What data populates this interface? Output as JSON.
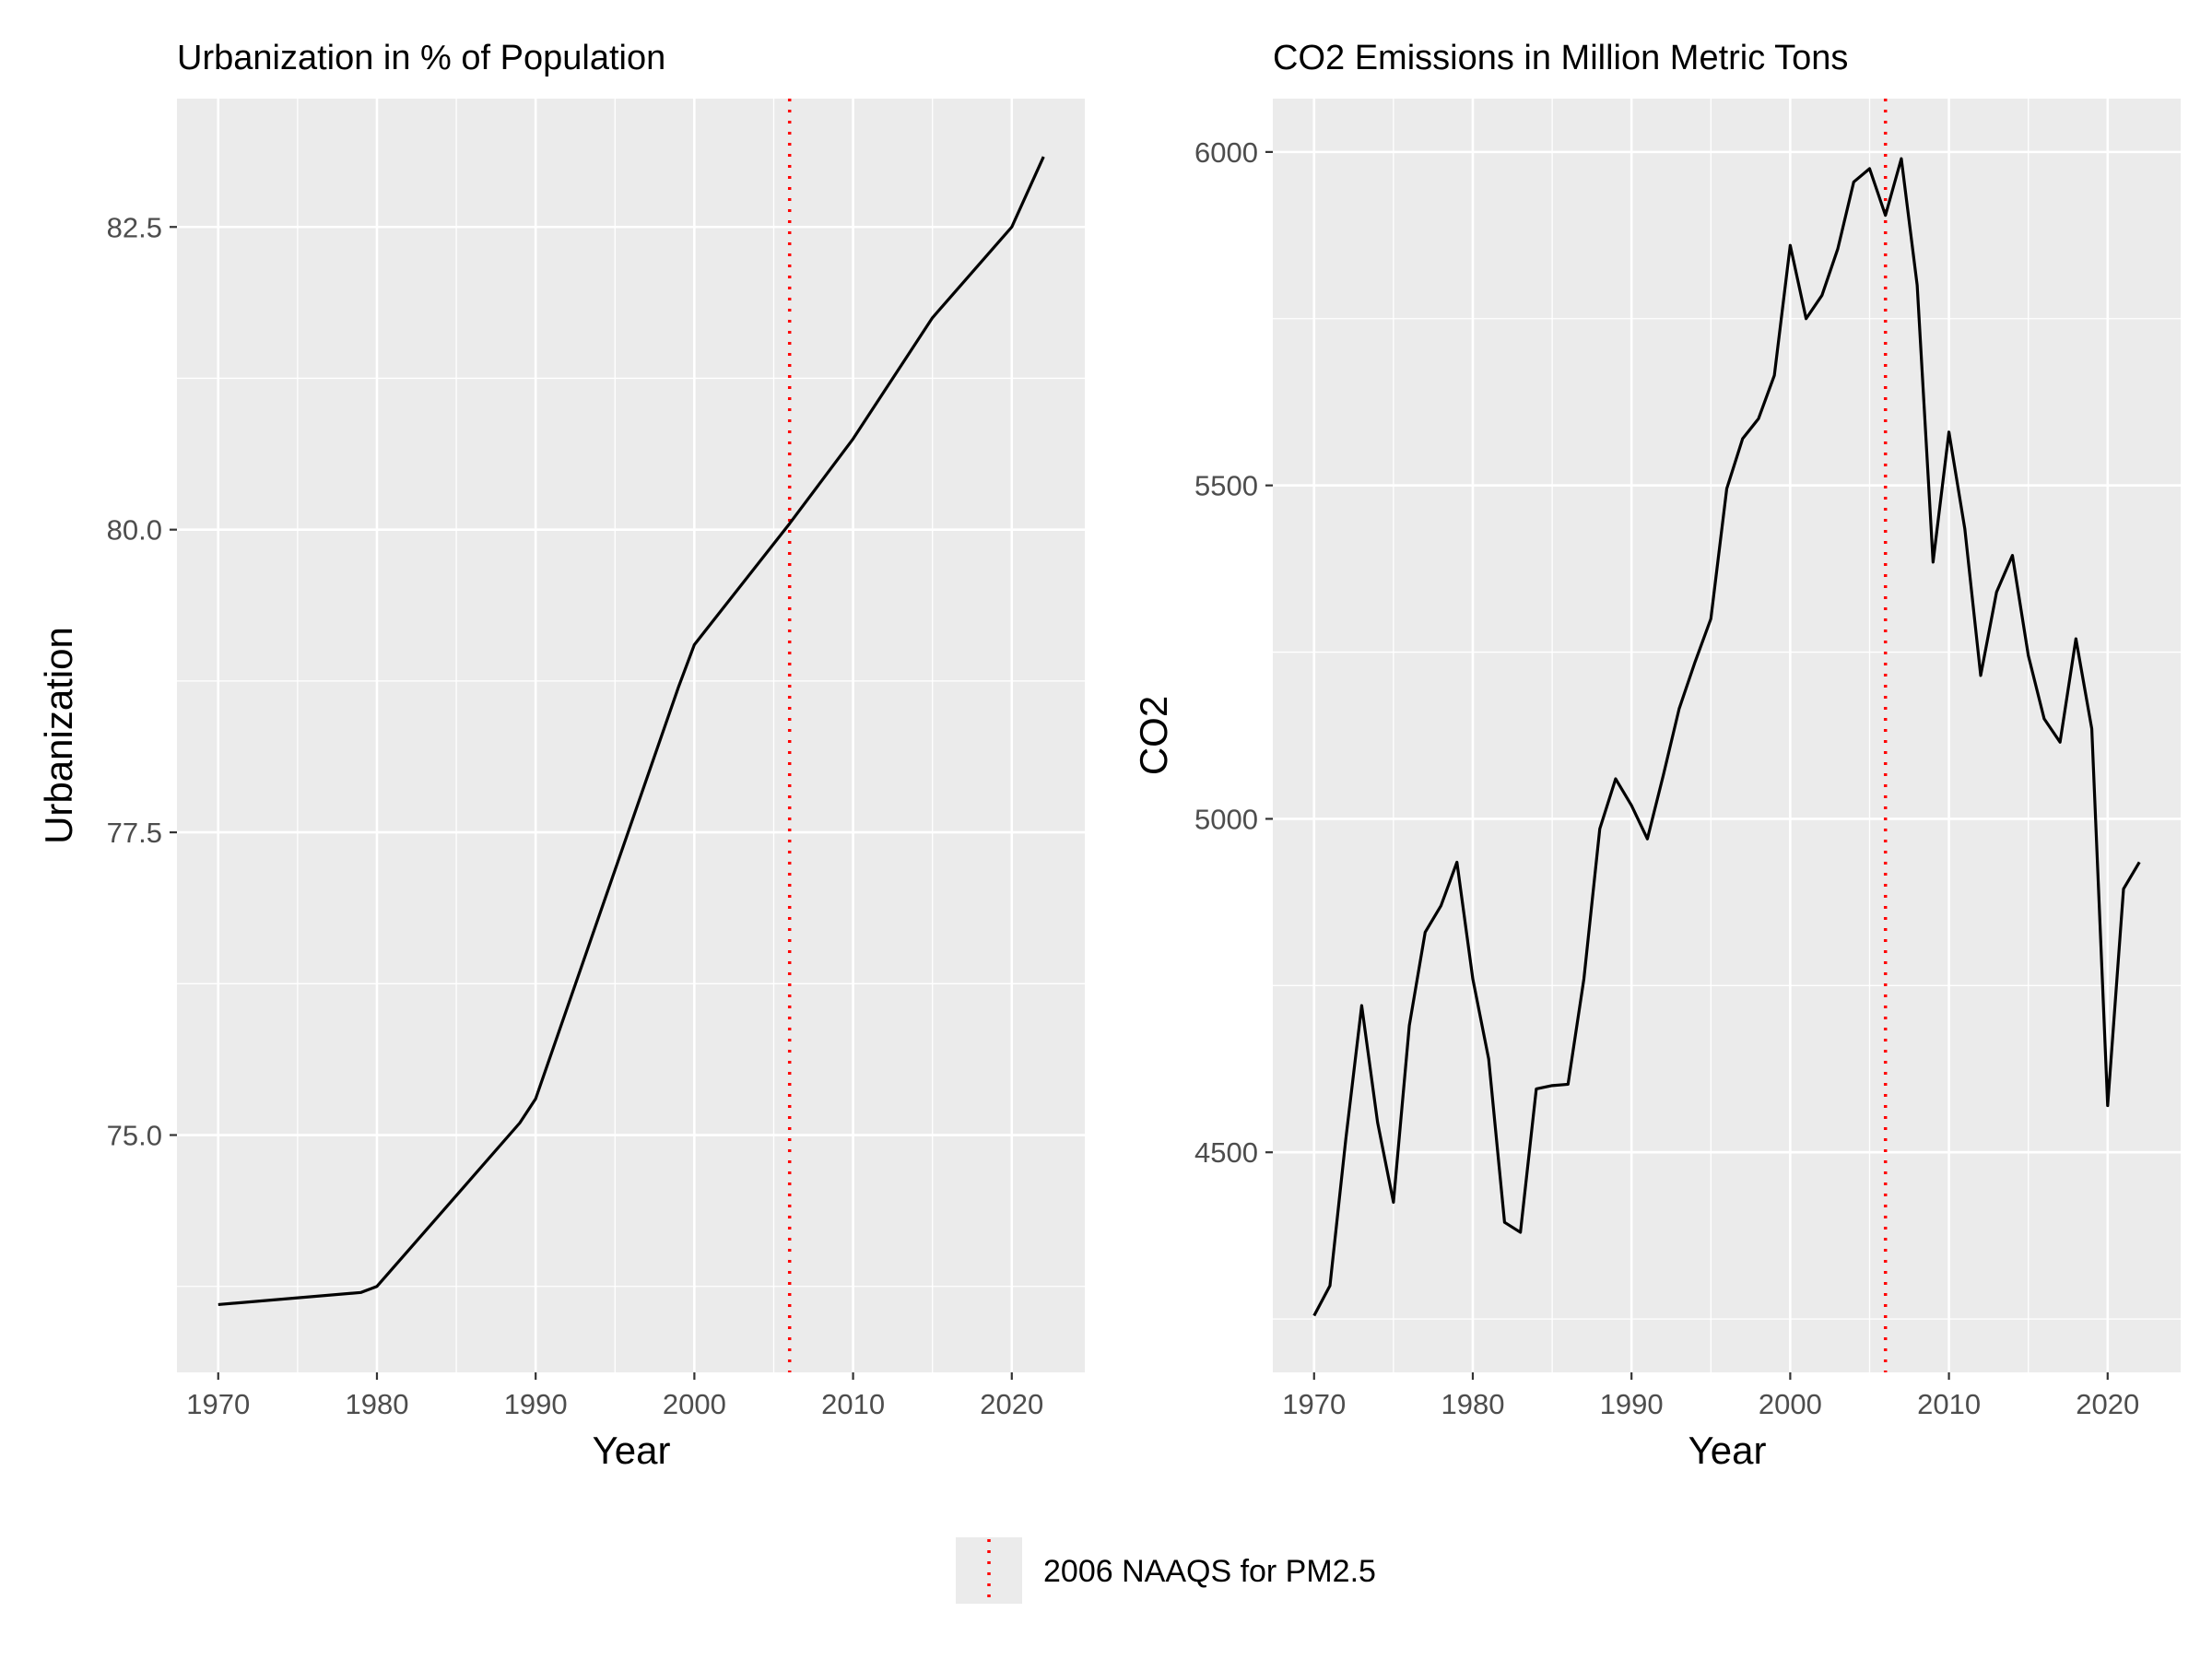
{
  "legend": {
    "label": "2006 NAAQS for PM2.5",
    "line_color": "#ff0000",
    "line_style": "dotted",
    "position": "bottom"
  },
  "style": {
    "panel_background": "#ebebeb",
    "grid_color": "#ffffff",
    "line_color": "#000000",
    "tick_label_color": "#4d4d4d"
  },
  "chart_data": [
    {
      "type": "line",
      "title": "Urbanization in % of Population",
      "xlabel": "Year",
      "ylabel": "Urbanization",
      "xlim": [
        1967.4,
        2024.6
      ],
      "ylim": [
        73.04,
        83.56
      ],
      "x_ticks": [
        1970,
        1980,
        1990,
        2000,
        2010,
        2020
      ],
      "y_ticks": [
        75.0,
        77.5,
        80.0,
        82.5
      ],
      "y_tick_labels": [
        "75.0",
        "77.5",
        "80.0",
        "82.5"
      ],
      "reference_line_x": 2006,
      "grid": true,
      "x": [
        1970,
        1979,
        1980,
        1989,
        1990,
        1999,
        2000,
        2006,
        2010,
        2015,
        2020,
        2022
      ],
      "values": [
        73.6,
        73.7,
        73.75,
        75.1,
        75.3,
        78.7,
        79.05,
        80.05,
        80.75,
        81.75,
        82.5,
        83.08
      ]
    },
    {
      "type": "line",
      "title": "CO2 Emissions in Million Metric Tons",
      "xlabel": "Year",
      "ylabel": "CO2",
      "xlim": [
        1967.4,
        2024.6
      ],
      "ylim": [
        4170,
        6080
      ],
      "x_ticks": [
        1970,
        1980,
        1990,
        2000,
        2010,
        2020
      ],
      "y_ticks": [
        4500,
        5000,
        5500,
        6000
      ],
      "y_tick_labels": [
        "4500",
        "5000",
        "5500",
        "6000"
      ],
      "reference_line_x": 2006,
      "grid": true,
      "x": [
        1970,
        1971,
        1972,
        1973,
        1974,
        1975,
        1976,
        1977,
        1978,
        1979,
        1980,
        1981,
        1982,
        1983,
        1984,
        1985,
        1986,
        1987,
        1988,
        1989,
        1990,
        1991,
        1992,
        1993,
        1994,
        1995,
        1996,
        1997,
        1998,
        1999,
        2000,
        2001,
        2002,
        2003,
        2004,
        2005,
        2006,
        2007,
        2008,
        2009,
        2010,
        2011,
        2012,
        2013,
        2014,
        2015,
        2016,
        2017,
        2018,
        2019,
        2020,
        2021,
        2022
      ],
      "values": [
        4255,
        4300,
        4520,
        4720,
        4545,
        4425,
        4690,
        4830,
        4870,
        4935,
        4760,
        4640,
        4395,
        4380,
        4595,
        4600,
        4602,
        4760,
        4985,
        5060,
        5020,
        4970,
        5065,
        5165,
        5235,
        5300,
        5495,
        5570,
        5600,
        5665,
        5860,
        5750,
        5785,
        5855,
        5955,
        5975,
        5905,
        5990,
        5800,
        5385,
        5580,
        5435,
        5215,
        5340,
        5395,
        5245,
        5150,
        5115,
        5270,
        5135,
        4570,
        4895,
        4935
      ]
    }
  ]
}
